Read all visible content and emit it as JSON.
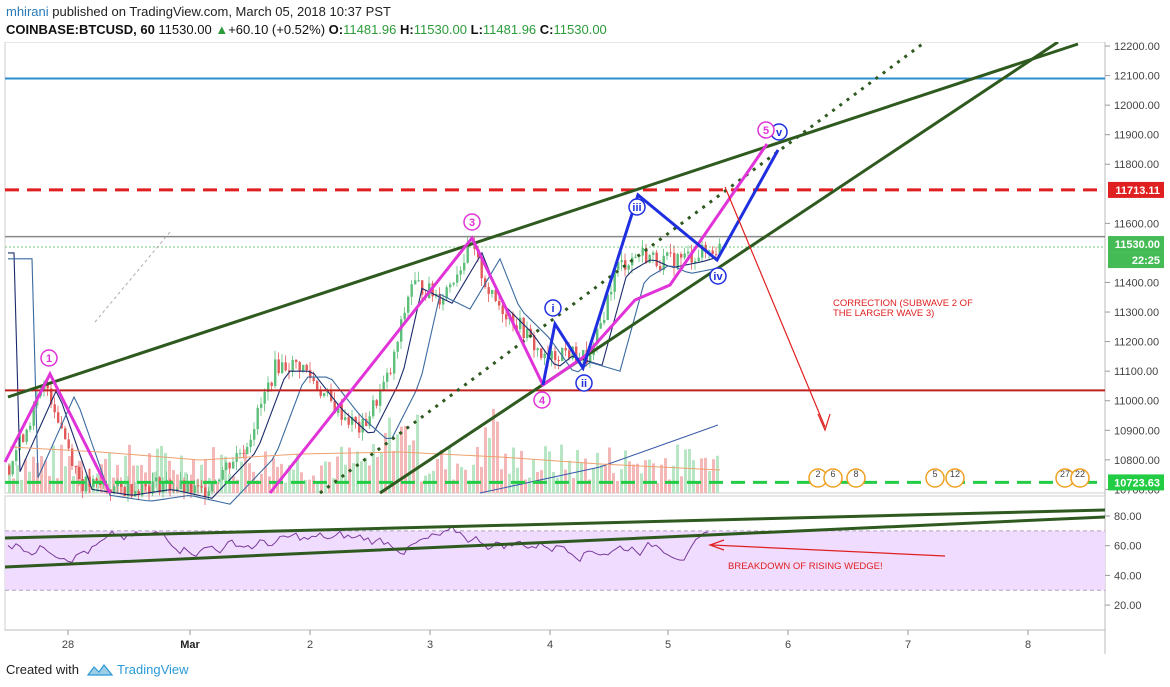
{
  "header": {
    "user": "mhirani",
    "published": " published on TradingView.com, March 05, 2018 10:37 PST",
    "symbol": "COINBASE:BTCUSD, 60",
    "last": "11530.00",
    "change": "+60.10 (+0.52%)",
    "o_label": "O:",
    "o_value": "11481.96",
    "h_label": "H:",
    "h_value": "11530.00",
    "l_label": "L:",
    "l_value": "11481.96",
    "c_label": "C:",
    "c_value": "11530.00"
  },
  "footer": {
    "created": "Created with",
    "brand": "TradingView"
  },
  "colors": {
    "wedge": "#2e5a1f",
    "wave_pink": "#e033d8",
    "wave_blue": "#1f2fe0",
    "resistance_red": "#e02020",
    "support_green": "#22cc44",
    "blue_level": "#2d8fd0",
    "dark_red_level": "#c02020",
    "rsi_fill": "#efdcff",
    "rsi_line": "#7a3a9a"
  },
  "annotations": {
    "correction": [
      "CORRECTION (SUBWAVE 2 OF",
      "THE LARGER WAVE 3)"
    ],
    "breakdown": "BREAKDOWN OF RISING WEDGE!",
    "wave_labels": [
      "1",
      "3",
      "4",
      "i",
      "ii",
      "iii",
      "iv",
      "v",
      "5"
    ]
  },
  "chart_data": {
    "type": "candlestick",
    "symbol": "COINBASE:BTCUSD",
    "interval": "60",
    "x_tick_labels": [
      "28",
      "Mar",
      "2",
      "3",
      "4",
      "5",
      "6",
      "7",
      "8"
    ],
    "price_axis": {
      "ticks": [
        "12200.00",
        "12100.00",
        "12000.00",
        "11900.00",
        "11800.00",
        "11600.00",
        "11400.00",
        "11300.00",
        "11200.00",
        "11100.00",
        "11000.00",
        "10900.00",
        "10800.00",
        "10700.00"
      ],
      "range": [
        10680,
        12220
      ]
    },
    "price_labels": [
      {
        "value": "11713.11",
        "color": "#e02020"
      },
      {
        "value": "11530.00",
        "color": "#44bb55"
      },
      {
        "value": "22:25",
        "color": "#44bb55"
      },
      {
        "value": "10723.63",
        "color": "#22cc44"
      }
    ],
    "horizontal_levels": [
      {
        "price": 12090,
        "style": "solid",
        "color": "#2d8fd0"
      },
      {
        "price": 11713.11,
        "style": "dashed",
        "color": "#e02020"
      },
      {
        "price": 11555,
        "style": "solid",
        "color": "#888888"
      },
      {
        "price": 11035,
        "style": "solid",
        "color": "#c02020"
      },
      {
        "price": 10723.63,
        "style": "dashed",
        "color": "#22cc44"
      }
    ],
    "rsi_axis": {
      "ticks": [
        "80.00",
        "60.00",
        "40.00",
        "20.00"
      ],
      "range": [
        10,
        90
      ],
      "band": [
        30,
        70
      ]
    },
    "event_badges": [
      "2",
      "6",
      "8",
      "5",
      "12",
      "27",
      "22"
    ]
  }
}
